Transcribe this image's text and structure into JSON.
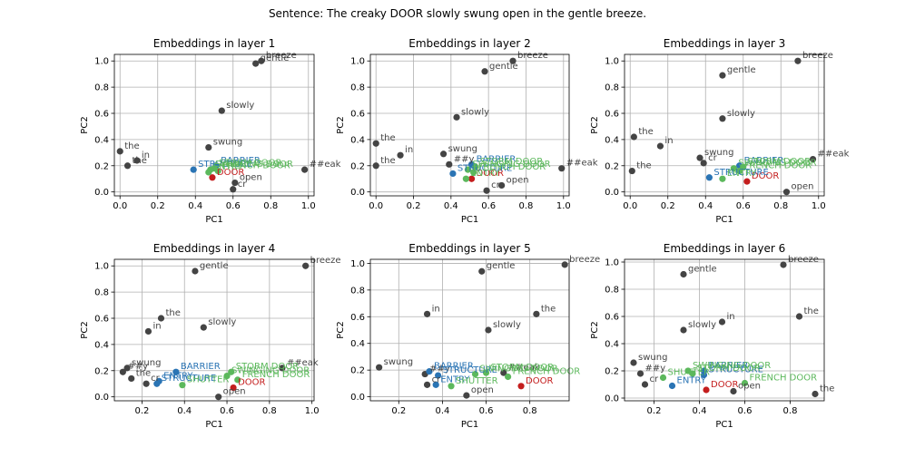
{
  "figure": {
    "title": "Sentence: The creaky DOOR slowly swung open in the gentle breeze."
  },
  "colors": {
    "sentence": "#444444",
    "target": "#c41e1e",
    "blue": "#2a74b4",
    "green": "#5cb85c"
  },
  "chart_data": [
    {
      "type": "scatter",
      "title": "Embeddings in layer 1",
      "xlabel": "PC1",
      "ylabel": "PC2",
      "xlim": [
        -0.03,
        1.03
      ],
      "ylim": [
        -0.03,
        1.05
      ],
      "xticks": [
        "0.0",
        "0.2",
        "0.4",
        "0.6",
        "0.8",
        "1.0"
      ],
      "xtick_values": [
        0,
        0.2,
        0.4,
        0.6,
        0.8,
        1.0
      ],
      "yticks": [
        "0.0",
        "0.2",
        "0.4",
        "0.6",
        "0.8",
        "1.0"
      ],
      "ytick_values": [
        0,
        0.2,
        0.4,
        0.6,
        0.8,
        1.0
      ],
      "points": [
        {
          "label": "the",
          "x": 0.0,
          "y": 0.31,
          "group": "sentence"
        },
        {
          "label": "the",
          "x": 0.04,
          "y": 0.2,
          "group": "sentence"
        },
        {
          "label": "in",
          "x": 0.09,
          "y": 0.24,
          "group": "sentence"
        },
        {
          "label": "slowly",
          "x": 0.54,
          "y": 0.62,
          "group": "sentence"
        },
        {
          "label": "swung",
          "x": 0.47,
          "y": 0.34,
          "group": "sentence"
        },
        {
          "label": "gentle",
          "x": 0.72,
          "y": 0.98,
          "group": "sentence"
        },
        {
          "label": "breeze",
          "x": 0.75,
          "y": 1.0,
          "group": "sentence"
        },
        {
          "label": "##eak",
          "x": 0.98,
          "y": 0.17,
          "group": "sentence"
        },
        {
          "label": "open",
          "x": 0.61,
          "y": 0.07,
          "group": "sentence"
        },
        {
          "label": "cr",
          "x": 0.6,
          "y": 0.02,
          "group": "sentence"
        },
        {
          "label": "DOOR",
          "x": 0.49,
          "y": 0.11,
          "group": "target"
        },
        {
          "label": "STRUCTURE",
          "x": 0.39,
          "y": 0.17,
          "group": "blue"
        },
        {
          "label": "BARRIER",
          "x": 0.51,
          "y": 0.2,
          "group": "blue"
        },
        {
          "label": "STORM DOOR",
          "x": 0.5,
          "y": 0.18,
          "group": "green"
        },
        {
          "label": "SWINGING DOOR",
          "x": 0.48,
          "y": 0.17,
          "group": "green"
        },
        {
          "label": "FRENCH DOOR",
          "x": 0.52,
          "y": 0.16,
          "group": "green"
        },
        {
          "label": "ENTRY",
          "x": 0.47,
          "y": 0.15,
          "group": "green"
        }
      ]
    },
    {
      "type": "scatter",
      "title": "Embeddings in layer 2",
      "xlabel": "PC1",
      "ylabel": "PC2",
      "xlim": [
        -0.03,
        1.03
      ],
      "ylim": [
        -0.03,
        1.05
      ],
      "xticks": [
        "0.0",
        "0.2",
        "0.4",
        "0.6",
        "0.8",
        "1.0"
      ],
      "xtick_values": [
        0,
        0.2,
        0.4,
        0.6,
        0.8,
        1.0
      ],
      "yticks": [
        "0.0",
        "0.2",
        "0.4",
        "0.6",
        "0.8",
        "1.0"
      ],
      "ytick_values": [
        0,
        0.2,
        0.4,
        0.6,
        0.8,
        1.0
      ],
      "points": [
        {
          "label": "the",
          "x": 0.0,
          "y": 0.37,
          "group": "sentence"
        },
        {
          "label": "the",
          "x": 0.0,
          "y": 0.2,
          "group": "sentence"
        },
        {
          "label": "in",
          "x": 0.13,
          "y": 0.28,
          "group": "sentence"
        },
        {
          "label": "slowly",
          "x": 0.43,
          "y": 0.57,
          "group": "sentence"
        },
        {
          "label": "swung",
          "x": 0.36,
          "y": 0.29,
          "group": "sentence"
        },
        {
          "label": "##y",
          "x": 0.39,
          "y": 0.21,
          "group": "sentence"
        },
        {
          "label": "gentle",
          "x": 0.58,
          "y": 0.92,
          "group": "sentence"
        },
        {
          "label": "breeze",
          "x": 0.73,
          "y": 1.0,
          "group": "sentence"
        },
        {
          "label": "##eak",
          "x": 0.99,
          "y": 0.18,
          "group": "sentence"
        },
        {
          "label": "open",
          "x": 0.67,
          "y": 0.05,
          "group": "sentence"
        },
        {
          "label": "cr",
          "x": 0.59,
          "y": 0.01,
          "group": "sentence"
        },
        {
          "label": "DOOR",
          "x": 0.51,
          "y": 0.1,
          "group": "target"
        },
        {
          "label": "STRUCTURE",
          "x": 0.41,
          "y": 0.14,
          "group": "blue"
        },
        {
          "label": "BARRIER",
          "x": 0.51,
          "y": 0.21,
          "group": "blue"
        },
        {
          "label": "STORM DOOR",
          "x": 0.53,
          "y": 0.19,
          "group": "green"
        },
        {
          "label": "SWINGING DOOR",
          "x": 0.49,
          "y": 0.17,
          "group": "green"
        },
        {
          "label": "FRENCH DOOR",
          "x": 0.52,
          "y": 0.15,
          "group": "green"
        },
        {
          "label": "ENTRY",
          "x": 0.48,
          "y": 0.1,
          "group": "green"
        }
      ]
    },
    {
      "type": "scatter",
      "title": "Embeddings in layer 3",
      "xlabel": "PC1",
      "ylabel": "PC2",
      "xlim": [
        -0.03,
        1.03
      ],
      "ylim": [
        -0.03,
        1.05
      ],
      "xticks": [
        "0.0",
        "0.2",
        "0.4",
        "0.6",
        "0.8",
        "1.0"
      ],
      "xtick_values": [
        0,
        0.2,
        0.4,
        0.6,
        0.8,
        1.0
      ],
      "yticks": [
        "0.0",
        "0.2",
        "0.4",
        "0.6",
        "0.8",
        "1.0"
      ],
      "ytick_values": [
        0,
        0.2,
        0.4,
        0.6,
        0.8,
        1.0
      ],
      "points": [
        {
          "label": "the",
          "x": 0.02,
          "y": 0.42,
          "group": "sentence"
        },
        {
          "label": "the",
          "x": 0.01,
          "y": 0.16,
          "group": "sentence"
        },
        {
          "label": "in",
          "x": 0.16,
          "y": 0.35,
          "group": "sentence"
        },
        {
          "label": "slowly",
          "x": 0.49,
          "y": 0.56,
          "group": "sentence"
        },
        {
          "label": "swung",
          "x": 0.37,
          "y": 0.26,
          "group": "sentence"
        },
        {
          "label": "gentle",
          "x": 0.49,
          "y": 0.89,
          "group": "sentence"
        },
        {
          "label": "breeze",
          "x": 0.89,
          "y": 1.0,
          "group": "sentence"
        },
        {
          "label": "##eak",
          "x": 0.97,
          "y": 0.25,
          "group": "sentence"
        },
        {
          "label": "open",
          "x": 0.83,
          "y": 0.0,
          "group": "sentence"
        },
        {
          "label": "cr",
          "x": 0.39,
          "y": 0.22,
          "group": "sentence"
        },
        {
          "label": "DOOR",
          "x": 0.62,
          "y": 0.08,
          "group": "target"
        },
        {
          "label": "STRUCTURE",
          "x": 0.42,
          "y": 0.11,
          "group": "blue"
        },
        {
          "label": "BARRIER",
          "x": 0.58,
          "y": 0.2,
          "group": "blue"
        },
        {
          "label": "STORM DOOR",
          "x": 0.6,
          "y": 0.19,
          "group": "green"
        },
        {
          "label": "SWINGING DOOR",
          "x": 0.55,
          "y": 0.18,
          "group": "green"
        },
        {
          "label": "FRENCH DOOR",
          "x": 0.58,
          "y": 0.16,
          "group": "green"
        },
        {
          "label": "ENTRY",
          "x": 0.49,
          "y": 0.1,
          "group": "green"
        }
      ]
    },
    {
      "type": "scatter",
      "title": "Embeddings in layer 4",
      "xlabel": "PC1",
      "ylabel": "PC2",
      "xlim": [
        0.07,
        1.01
      ],
      "ylim": [
        -0.03,
        1.05
      ],
      "xticks": [
        "0.2",
        "0.4",
        "0.6",
        "0.8",
        "1.0"
      ],
      "xtick_values": [
        0.2,
        0.4,
        0.6,
        0.8,
        1.0
      ],
      "yticks": [
        "0.0",
        "0.2",
        "0.4",
        "0.6",
        "0.8",
        "1.0"
      ],
      "ytick_values": [
        0,
        0.2,
        0.4,
        0.6,
        0.8,
        1.0
      ],
      "points": [
        {
          "label": "gentle",
          "x": 0.45,
          "y": 0.96,
          "group": "sentence"
        },
        {
          "label": "breeze",
          "x": 0.97,
          "y": 1.0,
          "group": "sentence"
        },
        {
          "label": "the",
          "x": 0.29,
          "y": 0.6,
          "group": "sentence"
        },
        {
          "label": "in",
          "x": 0.23,
          "y": 0.5,
          "group": "sentence"
        },
        {
          "label": "slowly",
          "x": 0.49,
          "y": 0.53,
          "group": "sentence"
        },
        {
          "label": "swung",
          "x": 0.13,
          "y": 0.22,
          "group": "sentence"
        },
        {
          "label": "##y",
          "x": 0.11,
          "y": 0.19,
          "group": "sentence"
        },
        {
          "label": "the",
          "x": 0.15,
          "y": 0.14,
          "group": "sentence"
        },
        {
          "label": "cr",
          "x": 0.22,
          "y": 0.1,
          "group": "sentence"
        },
        {
          "label": "##eak",
          "x": 0.86,
          "y": 0.22,
          "group": "sentence"
        },
        {
          "label": "open",
          "x": 0.56,
          "y": 0.0,
          "group": "sentence"
        },
        {
          "label": "DOOR",
          "x": 0.63,
          "y": 0.07,
          "group": "target"
        },
        {
          "label": "STRUCTURE",
          "x": 0.27,
          "y": 0.1,
          "group": "blue"
        },
        {
          "label": "ENTRY",
          "x": 0.28,
          "y": 0.12,
          "group": "blue"
        },
        {
          "label": "BARRIER",
          "x": 0.36,
          "y": 0.19,
          "group": "blue"
        },
        {
          "label": "STORM DOOR",
          "x": 0.62,
          "y": 0.19,
          "group": "green"
        },
        {
          "label": "SWINGING DOOR",
          "x": 0.6,
          "y": 0.16,
          "group": "green"
        },
        {
          "label": "FRENCH DOOR",
          "x": 0.65,
          "y": 0.13,
          "group": "green"
        },
        {
          "label": "SHUTTER",
          "x": 0.39,
          "y": 0.09,
          "group": "green"
        }
      ]
    },
    {
      "type": "scatter",
      "title": "Embeddings in layer 5",
      "xlabel": "PC1",
      "ylabel": "PC2",
      "xlim": [
        0.07,
        0.98
      ],
      "ylim": [
        -0.03,
        1.03
      ],
      "xticks": [
        "0.2",
        "0.4",
        "0.6",
        "0.8"
      ],
      "xtick_values": [
        0.2,
        0.4,
        0.6,
        0.8
      ],
      "yticks": [
        "0.0",
        "0.2",
        "0.4",
        "0.6",
        "0.8",
        "1.0"
      ],
      "ytick_values": [
        0,
        0.2,
        0.4,
        0.6,
        0.8,
        1.0
      ],
      "points": [
        {
          "label": "gentle",
          "x": 0.58,
          "y": 0.94,
          "group": "sentence"
        },
        {
          "label": "breeze",
          "x": 0.96,
          "y": 0.99,
          "group": "sentence"
        },
        {
          "label": "in",
          "x": 0.33,
          "y": 0.62,
          "group": "sentence"
        },
        {
          "label": "the",
          "x": 0.83,
          "y": 0.62,
          "group": "sentence"
        },
        {
          "label": "slowly",
          "x": 0.61,
          "y": 0.5,
          "group": "sentence"
        },
        {
          "label": "swung",
          "x": 0.11,
          "y": 0.22,
          "group": "sentence"
        },
        {
          "label": "##y",
          "x": 0.32,
          "y": 0.17,
          "group": "sentence"
        },
        {
          "label": "cr",
          "x": 0.33,
          "y": 0.09,
          "group": "sentence"
        },
        {
          "label": "##eak",
          "x": 0.68,
          "y": 0.18,
          "group": "sentence"
        },
        {
          "label": "open",
          "x": 0.51,
          "y": 0.01,
          "group": "sentence"
        },
        {
          "label": "DOOR",
          "x": 0.76,
          "y": 0.08,
          "group": "target"
        },
        {
          "label": "BARRIER",
          "x": 0.34,
          "y": 0.19,
          "group": "blue"
        },
        {
          "label": "STRUCTURE",
          "x": 0.38,
          "y": 0.16,
          "group": "blue"
        },
        {
          "label": "ENTRY",
          "x": 0.37,
          "y": 0.09,
          "group": "blue"
        },
        {
          "label": "STORM DOOR",
          "x": 0.6,
          "y": 0.18,
          "group": "green"
        },
        {
          "label": "SWINGING DOOR",
          "x": 0.55,
          "y": 0.17,
          "group": "green"
        },
        {
          "label": "FRENCH DOOR",
          "x": 0.7,
          "y": 0.15,
          "group": "green"
        },
        {
          "label": "SHUTTER",
          "x": 0.44,
          "y": 0.08,
          "group": "green"
        }
      ]
    },
    {
      "type": "scatter",
      "title": "Embeddings in layer 6",
      "xlabel": "PC1",
      "ylabel": "PC2",
      "xlim": [
        0.07,
        0.95
      ],
      "ylim": [
        -0.02,
        1.02
      ],
      "xticks": [
        "0.2",
        "0.4",
        "0.6",
        "0.8"
      ],
      "xtick_values": [
        0.2,
        0.4,
        0.6,
        0.8
      ],
      "yticks": [
        "0.0",
        "0.2",
        "0.4",
        "0.6",
        "0.8",
        "1.0"
      ],
      "ytick_values": [
        0,
        0.2,
        0.4,
        0.6,
        0.8,
        1.0
      ],
      "points": [
        {
          "label": "gentle",
          "x": 0.33,
          "y": 0.91,
          "group": "sentence"
        },
        {
          "label": "breeze",
          "x": 0.77,
          "y": 0.98,
          "group": "sentence"
        },
        {
          "label": "the",
          "x": 0.84,
          "y": 0.6,
          "group": "sentence"
        },
        {
          "label": "in",
          "x": 0.5,
          "y": 0.56,
          "group": "sentence"
        },
        {
          "label": "slowly",
          "x": 0.33,
          "y": 0.5,
          "group": "sentence"
        },
        {
          "label": "swung",
          "x": 0.11,
          "y": 0.26,
          "group": "sentence"
        },
        {
          "label": "##y",
          "x": 0.14,
          "y": 0.18,
          "group": "sentence"
        },
        {
          "label": "cr",
          "x": 0.16,
          "y": 0.1,
          "group": "sentence"
        },
        {
          "label": "the",
          "x": 0.91,
          "y": 0.03,
          "group": "sentence"
        },
        {
          "label": "open",
          "x": 0.55,
          "y": 0.05,
          "group": "sentence"
        },
        {
          "label": "DOOR",
          "x": 0.43,
          "y": 0.06,
          "group": "target"
        },
        {
          "label": "BARRIER",
          "x": 0.42,
          "y": 0.2,
          "group": "blue"
        },
        {
          "label": "STRUCTURE",
          "x": 0.42,
          "y": 0.17,
          "group": "blue"
        },
        {
          "label": "ENTRY",
          "x": 0.28,
          "y": 0.09,
          "group": "blue"
        },
        {
          "label": "SWINGING DOOR",
          "x": 0.35,
          "y": 0.2,
          "group": "green"
        },
        {
          "label": "STORM DOOR",
          "x": 0.37,
          "y": 0.18,
          "group": "green"
        },
        {
          "label": "FRENCH DOOR",
          "x": 0.6,
          "y": 0.11,
          "group": "green"
        },
        {
          "label": "SHUTTER",
          "x": 0.24,
          "y": 0.15,
          "group": "green"
        }
      ]
    }
  ]
}
